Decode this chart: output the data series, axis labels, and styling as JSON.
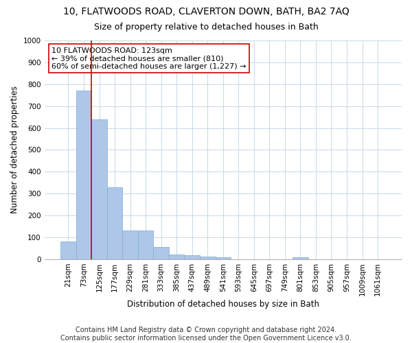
{
  "title": "10, FLATWOODS ROAD, CLAVERTON DOWN, BATH, BA2 7AQ",
  "subtitle": "Size of property relative to detached houses in Bath",
  "xlabel": "Distribution of detached houses by size in Bath",
  "ylabel": "Number of detached properties",
  "categories": [
    "21sqm",
    "73sqm",
    "125sqm",
    "177sqm",
    "229sqm",
    "281sqm",
    "333sqm",
    "385sqm",
    "437sqm",
    "489sqm",
    "541sqm",
    "593sqm",
    "645sqm",
    "697sqm",
    "749sqm",
    "801sqm",
    "853sqm",
    "905sqm",
    "957sqm",
    "1009sqm",
    "1061sqm"
  ],
  "values": [
    82,
    770,
    640,
    330,
    132,
    132,
    57,
    22,
    18,
    13,
    8,
    0,
    0,
    0,
    0,
    8,
    0,
    0,
    0,
    0,
    0
  ],
  "bar_color": "#aec6e8",
  "bar_edge_color": "#7aadd4",
  "vline_x_index": 1.5,
  "vline_color": "#cc0000",
  "annotation_text": "10 FLATWOODS ROAD: 123sqm\n← 39% of detached houses are smaller (810)\n60% of semi-detached houses are larger (1,227) →",
  "annotation_box_color": "#ffffff",
  "annotation_box_edge_color": "#cc0000",
  "ylim": [
    0,
    1000
  ],
  "yticks": [
    0,
    100,
    200,
    300,
    400,
    500,
    600,
    700,
    800,
    900,
    1000
  ],
  "footer": "Contains HM Land Registry data © Crown copyright and database right 2024.\nContains public sector information licensed under the Open Government Licence v3.0.",
  "bg_color": "#ffffff",
  "grid_color": "#c8d8e8",
  "title_fontsize": 10,
  "subtitle_fontsize": 9,
  "axis_label_fontsize": 8.5,
  "tick_fontsize": 7.5,
  "annotation_fontsize": 8,
  "footer_fontsize": 7
}
